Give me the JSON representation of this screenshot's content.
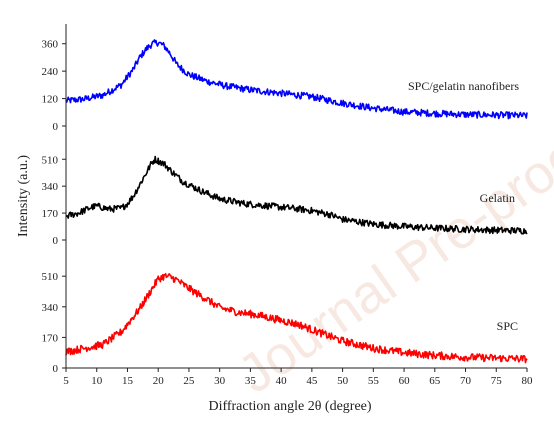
{
  "watermark": "Journal Pre-proof",
  "chart_data": {
    "type": "line",
    "xlabel": "Diffraction angle 2θ (degree)",
    "ylabel": "Intensity (a.u.)",
    "xlim": [
      5,
      80
    ],
    "x_ticks": [
      "5",
      "10",
      "15",
      "20",
      "25",
      "30",
      "35",
      "40",
      "45",
      "50",
      "55",
      "60",
      "65",
      "70",
      "75",
      "80"
    ],
    "grid": false,
    "panels": [
      {
        "name": "SPC/gelatin nanofibers",
        "color": "#0000ff",
        "ylim": [
          0,
          420
        ],
        "y_ticks": [
          "0",
          "120",
          "240",
          "360"
        ],
        "x": [
          5,
          8,
          11,
          14,
          16,
          17,
          18,
          19,
          20,
          21,
          22,
          23,
          25,
          28,
          31,
          35,
          40,
          45,
          50,
          55,
          60,
          65,
          70,
          75,
          80
        ],
        "y": [
          110,
          118,
          135,
          180,
          250,
          300,
          335,
          360,
          365,
          350,
          315,
          270,
          225,
          195,
          175,
          158,
          143,
          128,
          100,
          78,
          62,
          55,
          50,
          48,
          45
        ]
      },
      {
        "name": "Gelatin",
        "color": "#000000",
        "ylim": [
          0,
          600
        ],
        "y_ticks": [
          "0",
          "170",
          "340",
          "510"
        ],
        "x": [
          5,
          7,
          9,
          10,
          12,
          14,
          15,
          16,
          17,
          18,
          19,
          19.5,
          20,
          21,
          22,
          24,
          27,
          30,
          34,
          38,
          42,
          45,
          48,
          50,
          55,
          60,
          65,
          70,
          75,
          80
        ],
        "y": [
          150,
          170,
          205,
          215,
          195,
          200,
          230,
          280,
          350,
          420,
          490,
          510,
          500,
          480,
          440,
          370,
          310,
          260,
          230,
          215,
          200,
          185,
          160,
          130,
          100,
          85,
          75,
          68,
          62,
          58
        ]
      },
      {
        "name": "SPC",
        "color": "#ff0000",
        "ylim": [
          0,
          600
        ],
        "y_ticks": [
          "0",
          "170",
          "340",
          "510"
        ],
        "x": [
          5,
          8,
          11,
          14,
          17,
          19,
          20,
          21,
          22,
          23,
          24,
          26,
          28,
          30,
          33,
          36,
          40,
          43,
          46,
          50,
          55,
          60,
          65,
          70,
          75,
          80
        ],
        "y": [
          90,
          110,
          130,
          200,
          330,
          440,
          495,
          510,
          505,
          490,
          465,
          420,
          380,
          335,
          310,
          295,
          265,
          240,
          200,
          150,
          110,
          85,
          70,
          60,
          55,
          50
        ]
      }
    ]
  }
}
